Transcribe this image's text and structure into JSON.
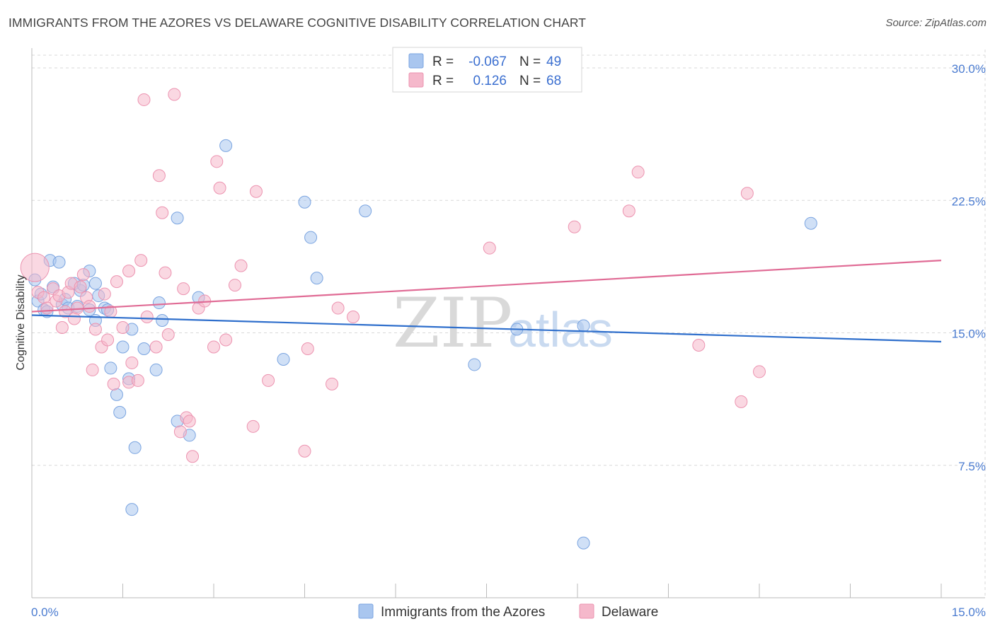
{
  "title": "IMMIGRANTS FROM THE AZORES VS DELAWARE COGNITIVE DISABILITY CORRELATION CHART",
  "source": "Source: ZipAtlas.com",
  "watermark": {
    "zip": "ZIP",
    "atlas": "atlas"
  },
  "legend": {
    "rows": [
      {
        "r_label": "R = ",
        "r_value": "-0.067",
        "n_label": "N = ",
        "n_value": "49"
      },
      {
        "r_label": "R = ",
        "r_value": "0.126",
        "n_label": "N = ",
        "n_value": "68"
      }
    ]
  },
  "colors": {
    "blue_fill": "#a9c6ef",
    "blue_stroke": "#7aa4e0",
    "blue_line": "#2f6fcc",
    "pink_fill": "#f5b8cb",
    "pink_stroke": "#ec93b0",
    "pink_line": "#e06b95",
    "axis_text": "#4a7bd0",
    "grid": "#d8d8d8"
  },
  "chart_data": {
    "type": "scatter",
    "ylabel": "Cognitive Disability",
    "xlim": [
      0,
      15
    ],
    "ylim": [
      0,
      30
    ],
    "x_ticks": [
      0,
      1.5,
      3,
      4.5,
      6,
      7.5,
      9,
      10.5,
      12,
      13.5,
      15
    ],
    "x_tick_labels": [
      {
        "value": 0,
        "label": "0.0%"
      },
      {
        "value": 15,
        "label": "15.0%"
      }
    ],
    "y_ticks": [
      {
        "value": 7.5,
        "label": "7.5%"
      },
      {
        "value": 15,
        "label": "15.0%"
      },
      {
        "value": 22.5,
        "label": "22.5%"
      },
      {
        "value": 30,
        "label": "30.0%"
      }
    ],
    "grid": true,
    "legend_position": "bottom",
    "series": [
      {
        "name": "Immigrants from the Azores",
        "color": "blue",
        "trend": {
          "x": [
            0,
            15
          ],
          "y": [
            16.0,
            14.5
          ]
        },
        "points": [
          {
            "x": 0.05,
            "y": 18.0
          },
          {
            "x": 0.1,
            "y": 16.8
          },
          {
            "x": 0.15,
            "y": 17.2
          },
          {
            "x": 0.2,
            "y": 16.3
          },
          {
            "x": 0.3,
            "y": 19.1
          },
          {
            "x": 0.35,
            "y": 17.6
          },
          {
            "x": 0.45,
            "y": 19.0
          },
          {
            "x": 0.5,
            "y": 16.6
          },
          {
            "x": 0.55,
            "y": 16.9
          },
          {
            "x": 0.6,
            "y": 16.4
          },
          {
            "x": 0.7,
            "y": 17.8
          },
          {
            "x": 0.8,
            "y": 17.4
          },
          {
            "x": 0.85,
            "y": 17.7
          },
          {
            "x": 0.95,
            "y": 16.3
          },
          {
            "x": 0.95,
            "y": 18.5
          },
          {
            "x": 1.05,
            "y": 15.7
          },
          {
            "x": 1.1,
            "y": 17.1
          },
          {
            "x": 1.2,
            "y": 16.4
          },
          {
            "x": 1.25,
            "y": 16.3
          },
          {
            "x": 1.3,
            "y": 13.0
          },
          {
            "x": 1.4,
            "y": 11.5
          },
          {
            "x": 1.45,
            "y": 10.5
          },
          {
            "x": 1.5,
            "y": 14.2
          },
          {
            "x": 1.6,
            "y": 12.4
          },
          {
            "x": 1.65,
            "y": 15.2
          },
          {
            "x": 1.65,
            "y": 5.0
          },
          {
            "x": 1.7,
            "y": 8.5
          },
          {
            "x": 1.85,
            "y": 14.1
          },
          {
            "x": 2.05,
            "y": 12.9
          },
          {
            "x": 2.1,
            "y": 16.7
          },
          {
            "x": 2.15,
            "y": 15.7
          },
          {
            "x": 2.4,
            "y": 10.0
          },
          {
            "x": 2.4,
            "y": 21.5
          },
          {
            "x": 2.6,
            "y": 9.2
          },
          {
            "x": 2.75,
            "y": 17.0
          },
          {
            "x": 3.2,
            "y": 25.6
          },
          {
            "x": 4.15,
            "y": 13.5
          },
          {
            "x": 4.5,
            "y": 22.4
          },
          {
            "x": 4.6,
            "y": 20.4
          },
          {
            "x": 4.7,
            "y": 18.1
          },
          {
            "x": 5.5,
            "y": 21.9
          },
          {
            "x": 7.3,
            "y": 13.2
          },
          {
            "x": 8.0,
            "y": 15.2
          },
          {
            "x": 9.1,
            "y": 15.4
          },
          {
            "x": 9.1,
            "y": 3.1
          },
          {
            "x": 12.85,
            "y": 21.2
          },
          {
            "x": 1.05,
            "y": 17.8
          },
          {
            "x": 0.25,
            "y": 16.2
          },
          {
            "x": 0.75,
            "y": 16.5
          }
        ]
      },
      {
        "name": "Delaware",
        "color": "pink",
        "trend": {
          "x": [
            0,
            15
          ],
          "y": [
            16.2,
            19.1
          ]
        },
        "points": [
          {
            "x": 0.05,
            "y": 18.7,
            "big": true
          },
          {
            "x": 0.1,
            "y": 17.3
          },
          {
            "x": 0.2,
            "y": 17.0
          },
          {
            "x": 0.25,
            "y": 16.4
          },
          {
            "x": 0.35,
            "y": 17.5
          },
          {
            "x": 0.4,
            "y": 16.8
          },
          {
            "x": 0.45,
            "y": 17.1
          },
          {
            "x": 0.5,
            "y": 15.3
          },
          {
            "x": 0.55,
            "y": 16.2
          },
          {
            "x": 0.6,
            "y": 17.3
          },
          {
            "x": 0.65,
            "y": 17.8
          },
          {
            "x": 0.7,
            "y": 15.8
          },
          {
            "x": 0.75,
            "y": 16.4
          },
          {
            "x": 0.8,
            "y": 17.6
          },
          {
            "x": 0.85,
            "y": 18.3
          },
          {
            "x": 0.9,
            "y": 17.0
          },
          {
            "x": 0.95,
            "y": 16.5
          },
          {
            "x": 1.0,
            "y": 12.9
          },
          {
            "x": 1.05,
            "y": 15.2
          },
          {
            "x": 1.15,
            "y": 14.2
          },
          {
            "x": 1.2,
            "y": 17.2
          },
          {
            "x": 1.25,
            "y": 14.6
          },
          {
            "x": 1.3,
            "y": 16.2
          },
          {
            "x": 1.35,
            "y": 12.1
          },
          {
            "x": 1.4,
            "y": 17.9
          },
          {
            "x": 1.5,
            "y": 15.3
          },
          {
            "x": 1.6,
            "y": 12.2
          },
          {
            "x": 1.6,
            "y": 18.5
          },
          {
            "x": 1.65,
            "y": 13.3
          },
          {
            "x": 1.75,
            "y": 12.3
          },
          {
            "x": 1.8,
            "y": 19.1
          },
          {
            "x": 1.85,
            "y": 28.2
          },
          {
            "x": 1.9,
            "y": 15.9
          },
          {
            "x": 2.05,
            "y": 14.2
          },
          {
            "x": 2.1,
            "y": 23.9
          },
          {
            "x": 2.15,
            "y": 21.8
          },
          {
            "x": 2.2,
            "y": 18.4
          },
          {
            "x": 2.25,
            "y": 14.9
          },
          {
            "x": 2.35,
            "y": 28.5
          },
          {
            "x": 2.45,
            "y": 9.4
          },
          {
            "x": 2.5,
            "y": 17.5
          },
          {
            "x": 2.55,
            "y": 10.2
          },
          {
            "x": 2.6,
            "y": 10.0
          },
          {
            "x": 2.65,
            "y": 8.0
          },
          {
            "x": 2.75,
            "y": 16.4
          },
          {
            "x": 2.85,
            "y": 16.8
          },
          {
            "x": 3.0,
            "y": 14.2
          },
          {
            "x": 3.05,
            "y": 24.7
          },
          {
            "x": 3.1,
            "y": 23.2
          },
          {
            "x": 3.2,
            "y": 14.6
          },
          {
            "x": 3.35,
            "y": 17.7
          },
          {
            "x": 3.45,
            "y": 18.8
          },
          {
            "x": 3.65,
            "y": 9.7
          },
          {
            "x": 3.7,
            "y": 23.0
          },
          {
            "x": 3.9,
            "y": 12.3
          },
          {
            "x": 4.5,
            "y": 8.3
          },
          {
            "x": 4.55,
            "y": 14.1
          },
          {
            "x": 4.95,
            "y": 12.1
          },
          {
            "x": 5.05,
            "y": 16.4
          },
          {
            "x": 5.3,
            "y": 15.9
          },
          {
            "x": 7.55,
            "y": 19.8
          },
          {
            "x": 8.95,
            "y": 21.0
          },
          {
            "x": 9.85,
            "y": 21.9
          },
          {
            "x": 10.0,
            "y": 24.1
          },
          {
            "x": 11.0,
            "y": 14.3
          },
          {
            "x": 11.7,
            "y": 11.1
          },
          {
            "x": 11.8,
            "y": 22.9
          },
          {
            "x": 12.0,
            "y": 12.8
          }
        ]
      }
    ]
  }
}
